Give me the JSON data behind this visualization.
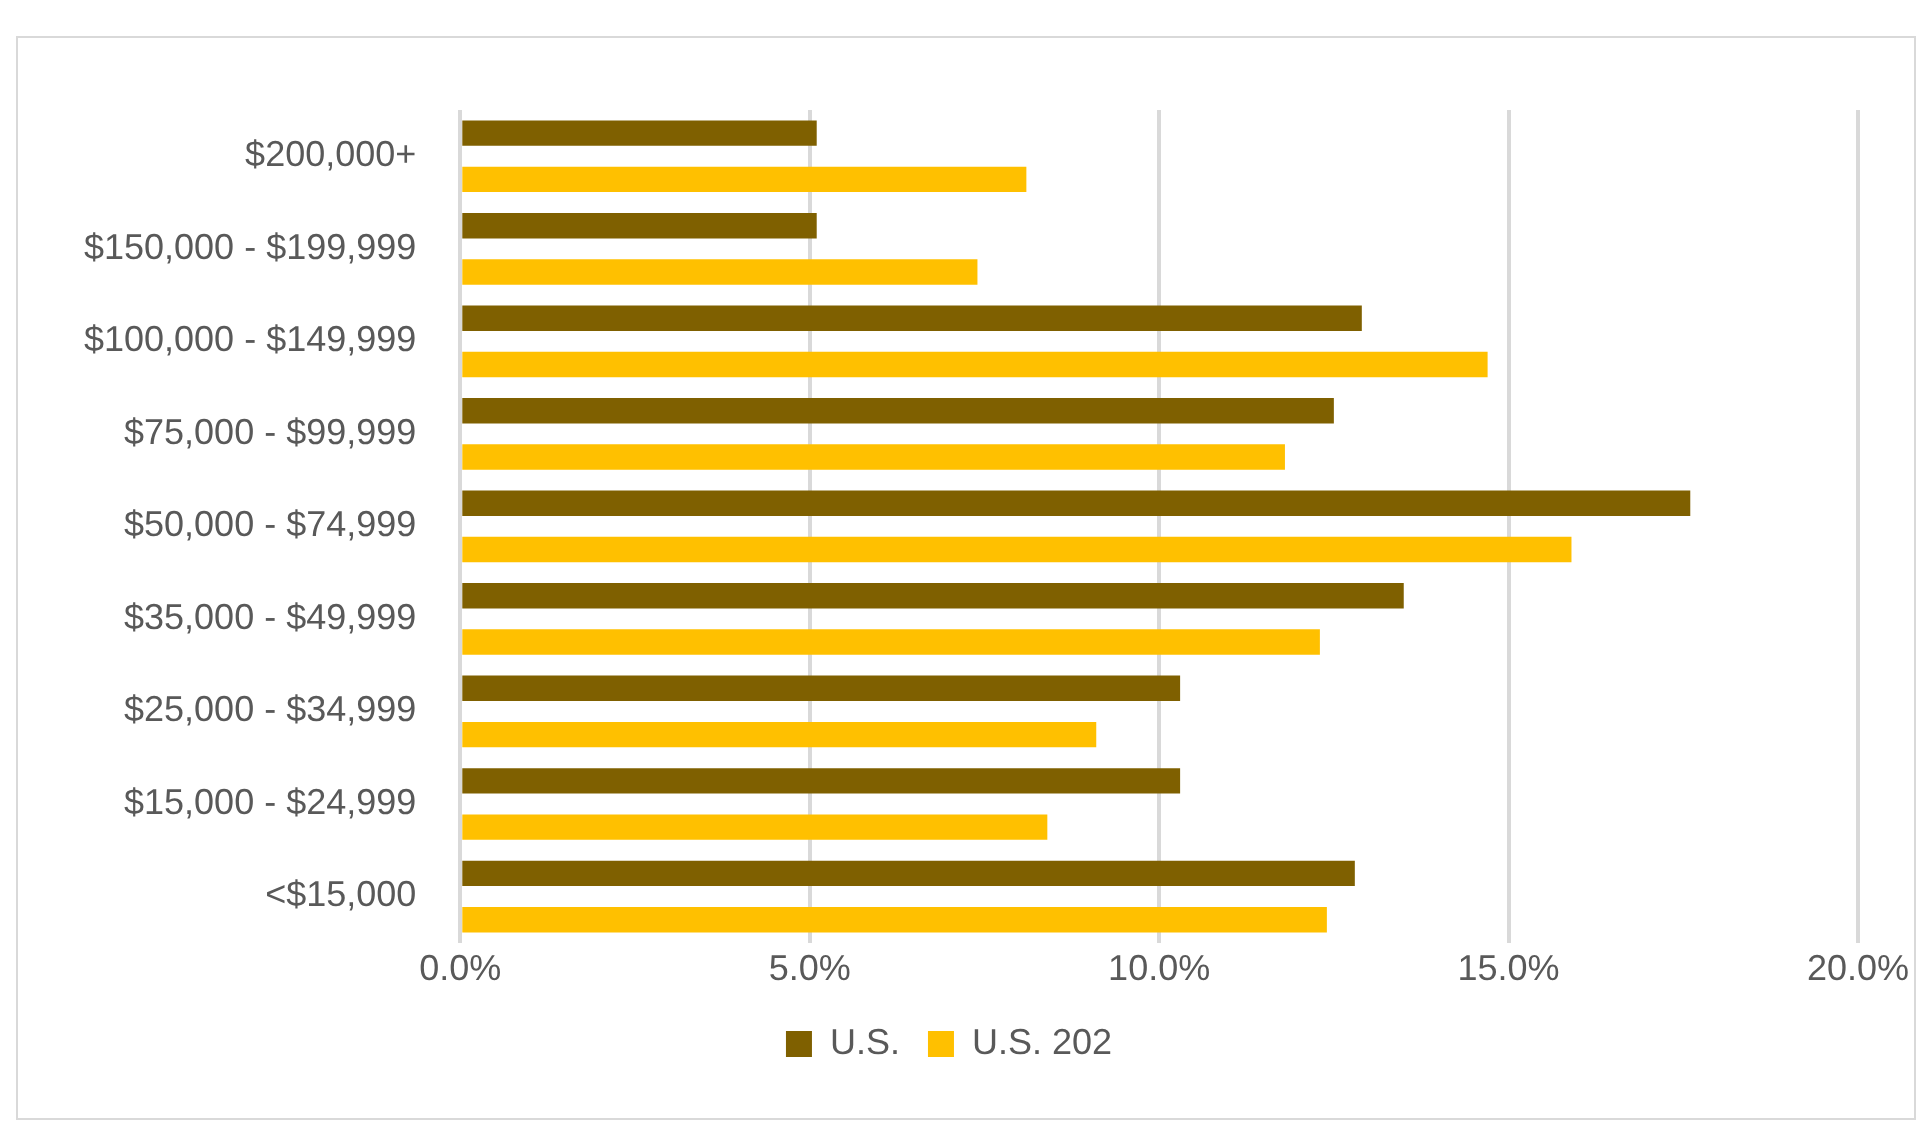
{
  "chart_data": {
    "type": "bar",
    "orientation": "horizontal",
    "categories": [
      "$200,000+",
      "$150,000 - $199,999",
      "$100,000 - $149,999",
      "$75,000 - $99,999",
      "$50,000 - $74,999",
      "$35,000 - $49,999",
      "$25,000 - $34,999",
      "$15,000 - $24,999",
      "<$15,000"
    ],
    "series": [
      {
        "name": "U.S.",
        "color": "#7f6000",
        "values": [
          5.1,
          5.1,
          12.9,
          12.5,
          17.6,
          13.5,
          10.3,
          10.3,
          12.8
        ]
      },
      {
        "name": "U.S. 202",
        "color": "#ffc000",
        "values": [
          8.1,
          7.4,
          14.7,
          11.8,
          15.9,
          12.3,
          9.1,
          8.4,
          12.4
        ]
      }
    ],
    "xlim": [
      0,
      20
    ],
    "xticks": [
      {
        "value": 0,
        "label": "0.0%"
      },
      {
        "value": 5,
        "label": "5.0%"
      },
      {
        "value": 10,
        "label": "10.0%"
      },
      {
        "value": 15,
        "label": "15.0%"
      },
      {
        "value": 20,
        "label": "20.0%"
      }
    ],
    "grid": "x",
    "legend": "bottom"
  }
}
